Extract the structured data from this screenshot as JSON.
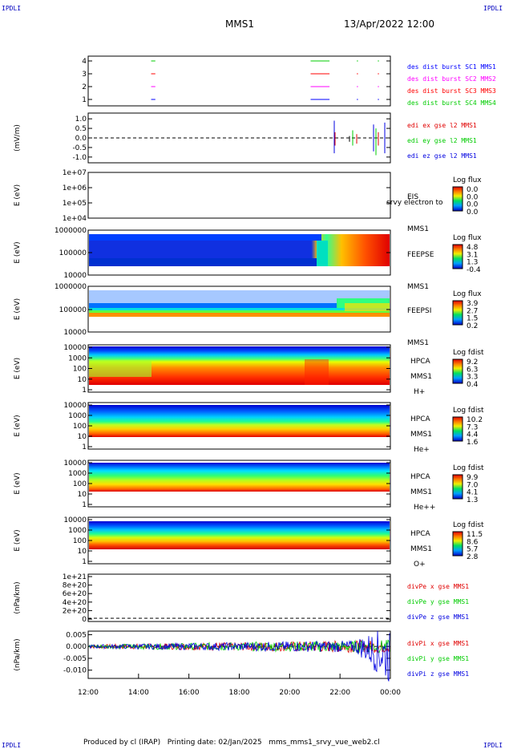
{
  "header": {
    "corner_left_top": "IPDLI",
    "corner_right_top": "IPDLI",
    "corner_left_bottom": "IPDLI",
    "corner_right_bottom": "IPDLI",
    "spacecraft": "MMS1",
    "datetime": "13/Apr/2022 12:00"
  },
  "footer": {
    "text": "Produced by cl (IRAP)   Printing date: 02/Jan/2025   mms_mms1_srvy_vue_web2.cl"
  },
  "colors": {
    "sc1": "#0000ff",
    "sc2": "#ff00ff",
    "sc3": "#ff0000",
    "sc4": "#00cc00"
  },
  "chart_data": [
    {
      "type": "line",
      "id": "burst",
      "ylabel": "",
      "y_ticks": [
        "4",
        "3",
        "2",
        "1"
      ],
      "legend": [
        "des dist burst SC1 MMS1",
        "des dist burst SC2 MMS2",
        "des dist burst SC3 MMS3",
        "des dist burst SC4 MMS4"
      ],
      "segments": [
        {
          "sc": 4,
          "start": "14:30",
          "end": "14:40"
        },
        {
          "sc": 4,
          "start": "20:50",
          "end": "21:35"
        },
        {
          "sc": 4,
          "start": "22:40",
          "end": "22:42"
        },
        {
          "sc": 4,
          "start": "23:30",
          "end": "23:32"
        },
        {
          "sc": 3,
          "start": "14:30",
          "end": "14:40"
        },
        {
          "sc": 3,
          "start": "20:50",
          "end": "21:35"
        },
        {
          "sc": 3,
          "start": "22:40",
          "end": "22:42"
        },
        {
          "sc": 3,
          "start": "23:30",
          "end": "23:32"
        },
        {
          "sc": 2,
          "start": "14:30",
          "end": "14:40"
        },
        {
          "sc": 2,
          "start": "20:50",
          "end": "21:35"
        },
        {
          "sc": 2,
          "start": "22:40",
          "end": "22:42"
        },
        {
          "sc": 2,
          "start": "23:30",
          "end": "23:32"
        },
        {
          "sc": 1,
          "start": "14:30",
          "end": "14:40"
        },
        {
          "sc": 1,
          "start": "20:50",
          "end": "21:35"
        },
        {
          "sc": 1,
          "start": "22:40",
          "end": "22:42"
        },
        {
          "sc": 1,
          "start": "23:30",
          "end": "23:32"
        }
      ]
    },
    {
      "type": "line",
      "id": "edi",
      "ylabel": "(mV/m)",
      "y_ticks": [
        "1.0",
        "0.5",
        "0.0",
        "-0.5",
        "-1.0"
      ],
      "ylim": [
        -1.3,
        1.3
      ],
      "legend": [
        "edi ex gse l2 MMS1",
        "edi ey gse l2 MMS1",
        "edi ez gse l2 MMS1"
      ]
    },
    {
      "type": "heatmap",
      "id": "eis",
      "ylabel": "E (eV)",
      "y_ticks": [
        "1e+07",
        "1e+06",
        "1e+05",
        "1e+04"
      ],
      "label_right": [
        "EIS",
        "MMS1"
      ],
      "overlay": "srvy electron to",
      "colorbar_title": "Log flux",
      "colorbar_ticks": [
        "0.0",
        "0.0",
        "0.0",
        "0.0"
      ]
    },
    {
      "type": "heatmap",
      "id": "feepse",
      "ylabel": "E (eV)",
      "y_ticks": [
        "1000000",
        "100000",
        "10000"
      ],
      "label_right": [
        "FEEPSE",
        "MMS1"
      ],
      "colorbar_title": "Log flux",
      "colorbar_ticks": [
        "4.8",
        "3.1",
        "1.3",
        "-0.4"
      ]
    },
    {
      "type": "heatmap",
      "id": "feepsi",
      "ylabel": "E (eV)",
      "y_ticks": [
        "1000000",
        "100000",
        "10000"
      ],
      "label_right": [
        "FEEPSI",
        "MMS1"
      ],
      "colorbar_title": "Log flux",
      "colorbar_ticks": [
        "3.9",
        "2.7",
        "1.5",
        "0.2"
      ]
    },
    {
      "type": "heatmap",
      "id": "hpca_h",
      "ylabel": "E (eV)",
      "y_ticks": [
        "10000",
        "1000",
        "100",
        "10",
        "1"
      ],
      "label_right": [
        "HPCA",
        "MMS1",
        "H+"
      ],
      "colorbar_title": "Log fdist",
      "colorbar_ticks": [
        "9.2",
        "6.3",
        "3.3",
        "0.4"
      ]
    },
    {
      "type": "heatmap",
      "id": "hpca_he",
      "ylabel": "E (eV)",
      "y_ticks": [
        "10000",
        "1000",
        "100",
        "10",
        "1"
      ],
      "label_right": [
        "HPCA",
        "MMS1",
        "He+"
      ],
      "colorbar_title": "Log fdist",
      "colorbar_ticks": [
        "10.2",
        "7.3",
        "4.4",
        "1.6"
      ]
    },
    {
      "type": "heatmap",
      "id": "hpca_hepp",
      "ylabel": "E (eV)",
      "y_ticks": [
        "10000",
        "1000",
        "100",
        "10",
        "1"
      ],
      "label_right": [
        "HPCA",
        "MMS1",
        "He++"
      ],
      "colorbar_title": "Log fdist",
      "colorbar_ticks": [
        "9.9",
        "7.0",
        "4.1",
        "1.3"
      ]
    },
    {
      "type": "heatmap",
      "id": "hpca_o",
      "ylabel": "E (eV)",
      "y_ticks": [
        "10000",
        "1000",
        "100",
        "10",
        "1"
      ],
      "label_right": [
        "HPCA",
        "MMS1",
        "O+"
      ],
      "colorbar_title": "Log fdist",
      "colorbar_ticks": [
        "11.5",
        "8.6",
        "5.7",
        "2.8"
      ]
    },
    {
      "type": "line",
      "id": "divpe",
      "ylabel": "(nPa/km)",
      "y_ticks": [
        "1e+21",
        "8e+20",
        "6e+20",
        "4e+20",
        "2e+20",
        "0"
      ],
      "legend": [
        "divPe x gse MMS1",
        "divPe y gse MMS1",
        "divPe z gse MMS1"
      ]
    },
    {
      "type": "line",
      "id": "divpi",
      "ylabel": "(nPa/km)",
      "y_ticks": [
        "0.005",
        "0.000",
        "-0.005",
        "-0.010"
      ],
      "ylim": [
        -0.0135,
        0.0065
      ],
      "legend": [
        "divPi x gse MMS1",
        "divPi y gse MMS1",
        "divPi z gse MMS1"
      ]
    }
  ],
  "x_axis": {
    "ticks": [
      "12:00",
      "14:00",
      "16:00",
      "18:00",
      "20:00",
      "22:00",
      "00:00"
    ]
  }
}
